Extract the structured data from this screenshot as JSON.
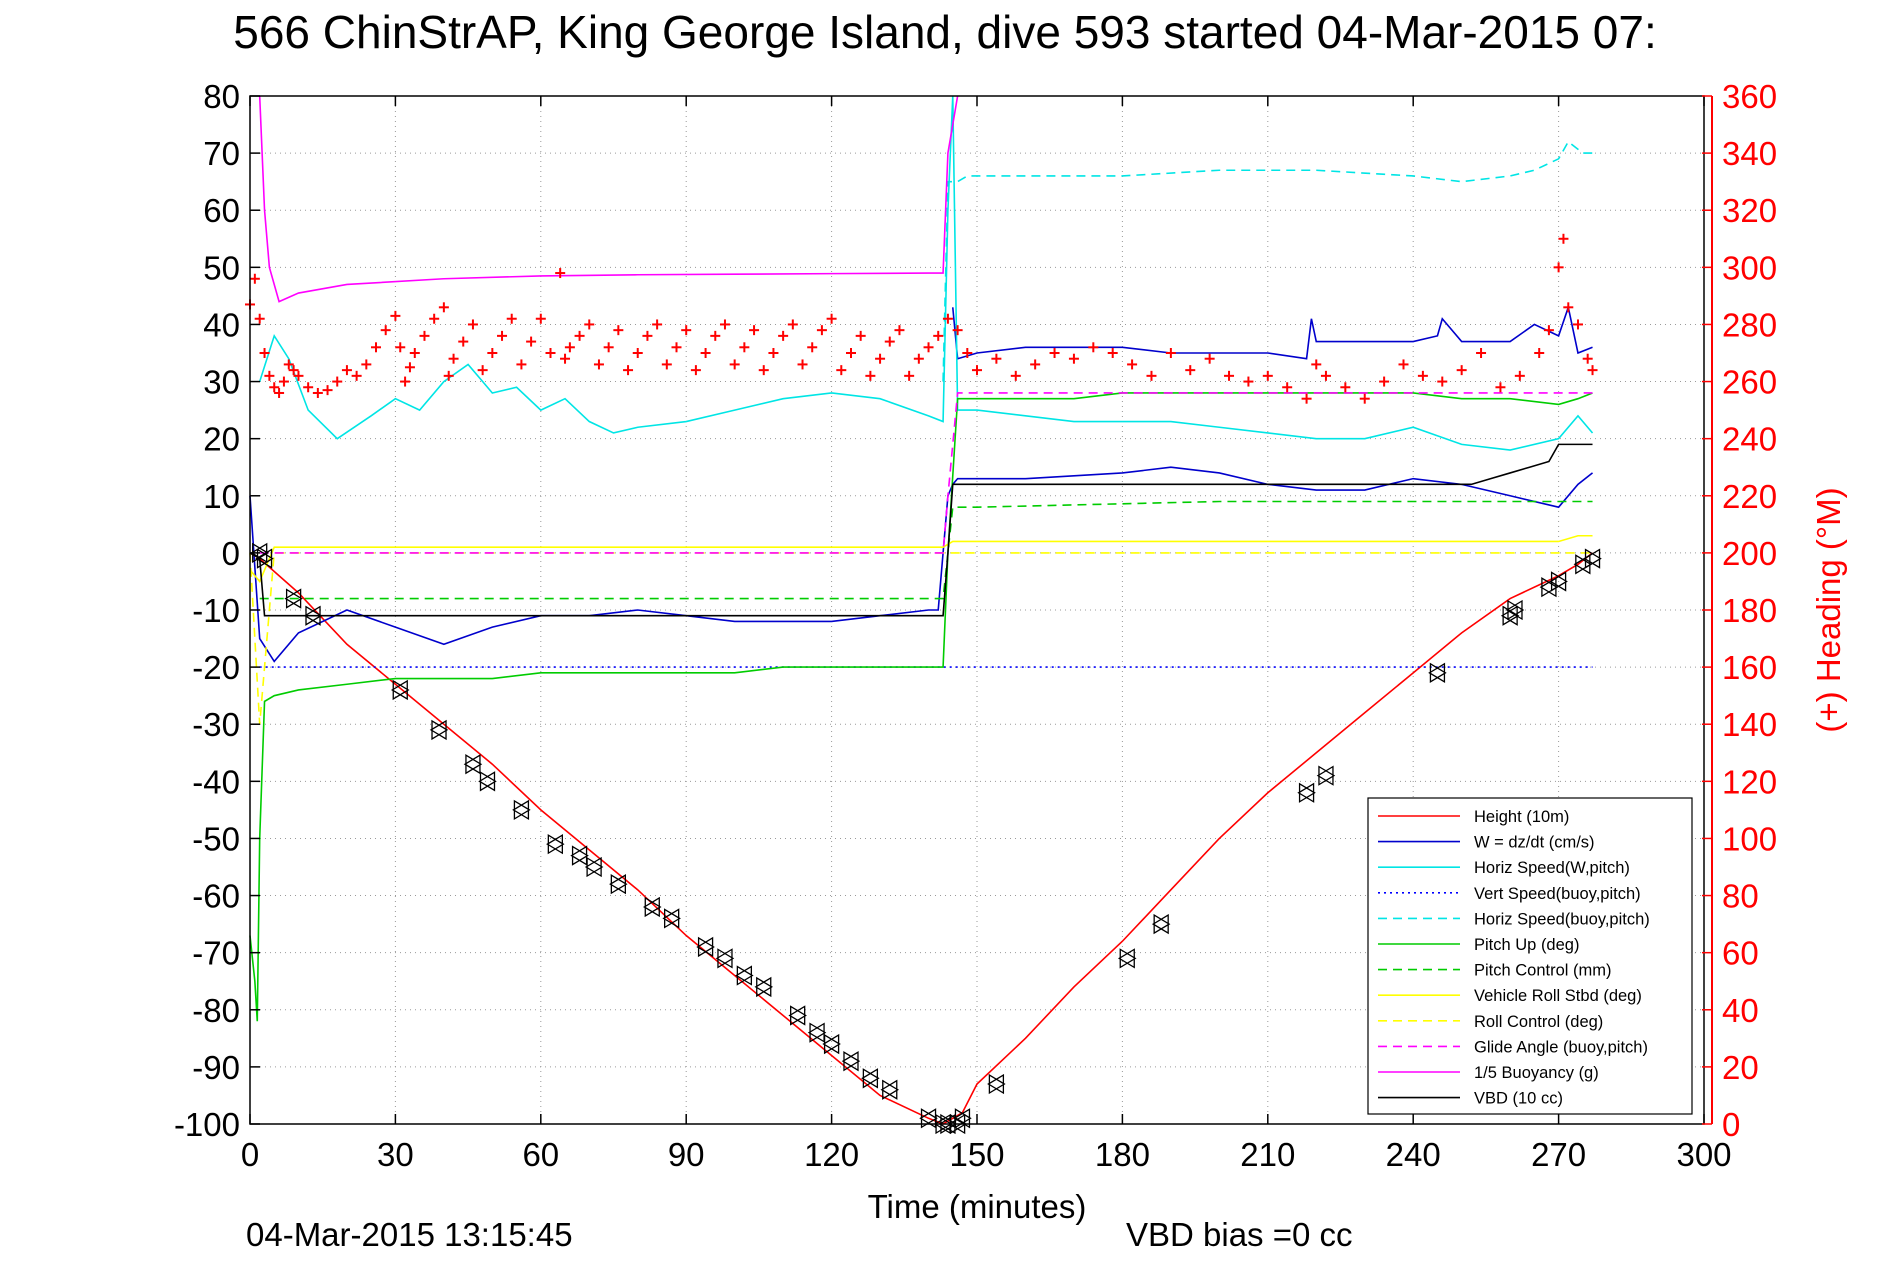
{
  "figure": {
    "title": "566 ChinStrAP, King George Island, dive 593 started 04-Mar-2015 07:",
    "timestamp": "04-Mar-2015 13:15:45",
    "vbd_bias": "VBD bias =0 cc"
  },
  "chart_data": {
    "type": "line",
    "title": "566 ChinStrAP, King George Island, dive 593 started 04-Mar-2015 07:",
    "xlabel": "Time (minutes)",
    "ylabel": "",
    "y2label": "(+) Heading (°M)",
    "xlim": [
      0,
      300
    ],
    "ylim": [
      -100,
      80
    ],
    "y2lim": [
      0,
      360
    ],
    "xticks": [
      0,
      30,
      60,
      90,
      120,
      150,
      180,
      210,
      240,
      270,
      300
    ],
    "yticks": [
      -100,
      -90,
      -80,
      -70,
      -60,
      -50,
      -40,
      -30,
      -20,
      -10,
      0,
      10,
      20,
      30,
      40,
      50,
      60,
      70,
      80
    ],
    "y2ticks": [
      0,
      20,
      40,
      60,
      80,
      100,
      120,
      140,
      160,
      180,
      200,
      220,
      240,
      260,
      280,
      300,
      320,
      340,
      360
    ],
    "grid": true,
    "legend_position": "lower-right",
    "axis_colors": {
      "left": "#000000",
      "right": "#ff0000"
    },
    "series": [
      {
        "name": "Height (10m)",
        "color": "#ff0000",
        "dash": "solid",
        "x": [
          0,
          2,
          10,
          20,
          30,
          40,
          50,
          60,
          70,
          80,
          90,
          100,
          110,
          120,
          130,
          140,
          143,
          145,
          147,
          150,
          160,
          170,
          180,
          190,
          200,
          210,
          220,
          230,
          240,
          250,
          260,
          270,
          274,
          277
        ],
        "y": [
          0,
          -1,
          -7,
          -16,
          -23,
          -30,
          -37,
          -45,
          -52,
          -59,
          -67,
          -74,
          -81,
          -88,
          -95,
          -99,
          -100,
          -99,
          -98,
          -93,
          -85,
          -76,
          -68,
          -59,
          -50,
          -42,
          -35,
          -28,
          -21,
          -14,
          -8,
          -4,
          -2,
          0
        ]
      },
      {
        "name": "W = dz/dt (cm/s)",
        "color": "#0000cc",
        "dash": "solid",
        "x": [
          0,
          2,
          5,
          10,
          20,
          30,
          40,
          50,
          60,
          70,
          80,
          90,
          100,
          110,
          120,
          130,
          140,
          142,
          143,
          144,
          145,
          146,
          150,
          160,
          170,
          180,
          190,
          200,
          210,
          220,
          230,
          240,
          250,
          260,
          270,
          274,
          277
        ],
        "y": [
          10,
          -15,
          -19,
          -14,
          -10,
          -13,
          -16,
          -13,
          -11,
          -11,
          -10,
          -11,
          -12,
          -12,
          -12,
          -11,
          -10,
          -10,
          0,
          10,
          12,
          13,
          13,
          13,
          13.5,
          14,
          15,
          14,
          12,
          11,
          11,
          13,
          12,
          10,
          8,
          12,
          14
        ]
      },
      {
        "name": "W = dz/dt (cm/s) 2",
        "color": "#0000cc",
        "dash": "solid",
        "x": [
          145,
          146,
          150,
          160,
          170,
          180,
          190,
          200,
          210,
          218,
          219,
          220,
          230,
          240,
          245,
          246,
          250,
          260,
          265,
          270,
          272,
          274,
          277
        ],
        "y": [
          43,
          34,
          35,
          36,
          36,
          36,
          35,
          35,
          35,
          34,
          41,
          37,
          37,
          37,
          38,
          41,
          37,
          37,
          40,
          38,
          43,
          35,
          36
        ]
      },
      {
        "name": "Horiz Speed(W,pitch)",
        "color": "#00e5e5",
        "dash": "solid",
        "x": [
          2,
          5,
          8,
          12,
          18,
          25,
          30,
          35,
          40,
          45,
          50,
          55,
          60,
          65,
          70,
          75,
          80,
          90,
          100,
          110,
          120,
          130,
          140,
          143,
          144,
          145,
          146,
          150,
          160,
          170,
          180,
          190,
          200,
          210,
          220,
          230,
          240,
          250,
          260,
          270,
          274,
          277
        ],
        "y": [
          30,
          38,
          34,
          25,
          20,
          24,
          27,
          25,
          30,
          33,
          28,
          29,
          25,
          27,
          23,
          21,
          22,
          23,
          25,
          27,
          28,
          27,
          24,
          23,
          60,
          80,
          25,
          25,
          24,
          23,
          23,
          23,
          22,
          21,
          20,
          20,
          22,
          19,
          18,
          20,
          24,
          21
        ]
      },
      {
        "name": "Vert Speed(buoy,pitch)",
        "color": "#0000ff",
        "dash": "dotted",
        "x": [
          2,
          60,
          143,
          145,
          200,
          277
        ],
        "y": [
          -20,
          -20,
          -20,
          -20,
          -20,
          -20
        ]
      },
      {
        "name": "Horiz Speed(buoy,pitch)",
        "color": "#00e5e5",
        "dash": "dashed",
        "x": [
          143,
          144,
          146,
          148,
          160,
          180,
          200,
          220,
          240,
          250,
          260,
          265,
          270,
          272,
          275,
          277
        ],
        "y": [
          30,
          65,
          65,
          66,
          66,
          66,
          67,
          67,
          66,
          65,
          66,
          67,
          69,
          72,
          70,
          70
        ]
      },
      {
        "name": "Pitch Up (deg)",
        "color": "#00cc00",
        "dash": "solid",
        "x": [
          0,
          1,
          1.5,
          2,
          3,
          5,
          10,
          20,
          30,
          40,
          50,
          60,
          70,
          80,
          90,
          100,
          110,
          120,
          130,
          140,
          143,
          144,
          146,
          150,
          160,
          170,
          180,
          190,
          200,
          210,
          220,
          230,
          240,
          250,
          260,
          270,
          274,
          277
        ],
        "y": [
          -67,
          -75,
          -82,
          -50,
          -26,
          -25,
          -24,
          -23,
          -22,
          -22,
          -22,
          -21,
          -21,
          -21,
          -21,
          -21,
          -20,
          -20,
          -20,
          -20,
          -20,
          0,
          27,
          27,
          27,
          27,
          28,
          28,
          28,
          28,
          28,
          28,
          28,
          27,
          27,
          26,
          27,
          28
        ]
      },
      {
        "name": "Pitch Control (mm)",
        "color": "#00cc00",
        "dash": "dashed",
        "x": [
          2,
          10,
          50,
          100,
          143,
          145,
          150,
          200,
          250,
          277
        ],
        "y": [
          -8,
          -8,
          -8,
          -8,
          -8,
          8,
          8,
          9,
          9,
          9
        ]
      },
      {
        "name": "Vehicle Roll Stbd (deg)",
        "color": "#ffff00",
        "dash": "solid",
        "x": [
          0,
          2,
          5,
          10,
          30,
          60,
          90,
          120,
          143,
          145,
          150,
          180,
          210,
          240,
          260,
          270,
          274,
          277
        ],
        "y": [
          -3,
          -5,
          1,
          1,
          1,
          1,
          1,
          1,
          1,
          2,
          2,
          2,
          2,
          2,
          2,
          2,
          3,
          3
        ]
      },
      {
        "name": "Roll Control (deg)",
        "color": "#ffff00",
        "dash": "dashed",
        "x": [
          0,
          2,
          5,
          10,
          30,
          60,
          90,
          120,
          143,
          145,
          150,
          180,
          210,
          240,
          260,
          270,
          274,
          277
        ],
        "y": [
          0,
          -30,
          0,
          0,
          0,
          0,
          0,
          0,
          0,
          0,
          0,
          0,
          0,
          0,
          0,
          0,
          0,
          0
        ]
      },
      {
        "name": "Glide Angle (buoy,pitch)",
        "color": "#ff00ff",
        "dash": "dashed",
        "x": [
          2,
          60,
          143,
          144,
          146,
          200,
          250,
          277
        ],
        "y": [
          0,
          0,
          0,
          10,
          28,
          28,
          28,
          28
        ]
      },
      {
        "name": "1/5 Buoyancy (g)",
        "color": "#ff00ff",
        "dash": "solid",
        "x": [
          2,
          3,
          4,
          6,
          10,
          20,
          40,
          60,
          80,
          100,
          120,
          140,
          143,
          144,
          146
        ],
        "y": [
          80,
          60,
          50,
          44,
          45.5,
          47,
          48,
          48.5,
          48.7,
          48.8,
          48.9,
          49,
          49,
          70,
          80
        ]
      },
      {
        "name": "VBD (10 cc)",
        "color": "#000000",
        "dash": "solid",
        "x": [
          0,
          2,
          3,
          4,
          143,
          144,
          145,
          146,
          250,
          252,
          256,
          260,
          264,
          268,
          270,
          277
        ],
        "y": [
          0,
          -1,
          -11,
          -11,
          -11,
          0,
          12,
          12,
          12,
          12,
          13,
          14,
          15,
          16,
          19,
          19
        ]
      }
    ],
    "heading_series": {
      "name": "(+) Heading",
      "color": "#ff0000",
      "marker": "+",
      "x": [
        0,
        1,
        2,
        3,
        4,
        5,
        6,
        7,
        8,
        9,
        10,
        12,
        14,
        16,
        18,
        20,
        22,
        24,
        26,
        28,
        30,
        31,
        32,
        33,
        34,
        36,
        38,
        40,
        41,
        42,
        44,
        46,
        48,
        50,
        52,
        54,
        56,
        58,
        60,
        62,
        64,
        65,
        66,
        68,
        70,
        72,
        74,
        76,
        78,
        80,
        82,
        84,
        86,
        88,
        90,
        92,
        94,
        96,
        98,
        100,
        102,
        104,
        106,
        108,
        110,
        112,
        114,
        116,
        118,
        120,
        122,
        124,
        126,
        128,
        130,
        132,
        134,
        136,
        138,
        140,
        142,
        144,
        146,
        148,
        150,
        154,
        158,
        162,
        166,
        170,
        174,
        178,
        182,
        186,
        190,
        194,
        198,
        202,
        206,
        210,
        214,
        218,
        220,
        222,
        226,
        230,
        234,
        238,
        242,
        246,
        250,
        254,
        258,
        262,
        266,
        268,
        270,
        271,
        272,
        274,
        276,
        277
      ],
      "y": [
        287,
        296,
        282,
        270,
        262,
        258,
        256,
        260,
        266,
        264,
        262,
        258,
        256,
        257,
        260,
        264,
        262,
        266,
        272,
        278,
        283,
        272,
        260,
        265,
        270,
        276,
        282,
        286,
        262,
        268,
        274,
        280,
        264,
        270,
        276,
        282,
        266,
        274,
        282,
        270,
        298,
        268,
        272,
        276,
        280,
        266,
        272,
        278,
        264,
        270,
        276,
        280,
        266,
        272,
        278,
        264,
        270,
        276,
        280,
        266,
        272,
        278,
        264,
        270,
        276,
        280,
        266,
        272,
        278,
        282,
        264,
        270,
        276,
        262,
        268,
        274,
        278,
        262,
        268,
        272,
        276,
        282,
        278,
        270,
        264,
        268,
        262,
        266,
        270,
        268,
        272,
        270,
        266,
        262,
        270,
        264,
        268,
        262,
        260,
        262,
        258,
        254,
        266,
        262,
        258,
        254,
        260,
        266,
        262,
        260,
        264,
        270,
        258,
        262,
        270,
        278,
        300,
        310,
        286,
        280,
        268,
        264
      ]
    },
    "position_markers": {
      "marker": "triangle",
      "color": "#000000",
      "x": [
        2,
        3,
        9,
        13,
        31,
        39,
        46,
        49,
        56,
        63,
        68,
        71,
        76,
        83,
        87,
        94,
        98,
        102,
        106,
        113,
        117,
        120,
        124,
        128,
        132,
        140,
        143,
        144,
        146,
        147,
        154,
        181,
        188,
        218,
        222,
        245,
        260,
        261,
        268,
        270,
        275,
        277
      ],
      "y": [
        0,
        -1,
        -8,
        -11,
        -24,
        -31,
        -37,
        -40,
        -45,
        -51,
        -53,
        -55,
        -58,
        -62,
        -64,
        -69,
        -71,
        -74,
        -76,
        -81,
        -84,
        -86,
        -89,
        -92,
        -94,
        -99,
        -100,
        -100,
        -100,
        -99,
        -93,
        -71,
        -65,
        -42,
        -39,
        -21,
        -11,
        -10,
        -6,
        -5,
        -2,
        -1
      ]
    }
  }
}
